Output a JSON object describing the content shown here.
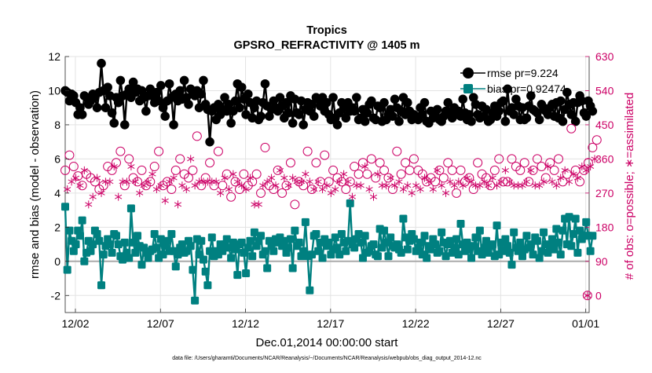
{
  "chart_data": {
    "type": "line",
    "title": "Tropics",
    "subtitle": "GPSRO_REFRACTIVITY @ 1405 m",
    "xlabel": "Dec.01,2014 00:00:00 start",
    "ylabel_left": "rmse and bias (model - observation)",
    "ylabel_right": "# of obs: o=possible; ∗=assimilated",
    "footnote": "data file: /Users/gharamti/Documents/NCAR/Reanalysis/~/Documents/NCAR/Reanalysis/webpub/obs_diag_output_2014-12.nc",
    "x_range_days": [
      0.4,
      31.2
    ],
    "ylim_left": [
      -3,
      12
    ],
    "ylim_right": [
      -45,
      630
    ],
    "x_ticks": [
      {
        "day": 1.0,
        "label": "12/02"
      },
      {
        "day": 6.0,
        "label": "12/07"
      },
      {
        "day": 11.0,
        "label": "12/12"
      },
      {
        "day": 16.0,
        "label": "12/17"
      },
      {
        "day": 21.0,
        "label": "12/22"
      },
      {
        "day": 26.0,
        "label": "12/27"
      },
      {
        "day": 31.0,
        "label": "01/01"
      }
    ],
    "y_ticks_left": [
      -2,
      0,
      2,
      4,
      6,
      8,
      10,
      12
    ],
    "y_ticks_right": [
      0,
      90,
      180,
      270,
      360,
      450,
      540,
      630
    ],
    "legend": [
      {
        "name": "rmse pr=9.224",
        "color": "#000000",
        "marker": "circle"
      },
      {
        "name": "bias pr=0.92474",
        "color": "#008080",
        "marker": "square"
      }
    ],
    "x_step_days": 0.125,
    "series": [
      {
        "name": "rmse",
        "axis": "left",
        "color": "#000000",
        "values": [
          10.0,
          9.9,
          9.4,
          9.8,
          9.7,
          9.3,
          8.6,
          9.0,
          8.6,
          9.7,
          9.6,
          9.2,
          9.4,
          9.8,
          9.6,
          9.0,
          9.9,
          11.6,
          10.0,
          9.0,
          10.2,
          9.7,
          8.7,
          8.1,
          9.6,
          9.3,
          10.6,
          9.7,
          8.0,
          9.8,
          10.1,
          9.6,
          10.5,
          9.9,
          10.1,
          9.4,
          10.0,
          9.6,
          8.8,
          9.7,
          10.1,
          9.7,
          9.3,
          9.9,
          9.4,
          10.3,
          9.0,
          8.5,
          9.4,
          10.4,
          9.6,
          8.0,
          9.8,
          9.4,
          10.0,
          9.5,
          10.6,
          9.6,
          9.2,
          10.1,
          9.8,
          9.7,
          10.0,
          9.0,
          9.8,
          10.6,
          9.2,
          8.9,
          7.0,
          8.8,
          9.0,
          8.3,
          9.2,
          8.6,
          8.9,
          9.6,
          8.8,
          9.2,
          8.1,
          8.8,
          9.4,
          10.4,
          9.0,
          10.2,
          9.5,
          8.6,
          9.8,
          9.3,
          8.4,
          9.0,
          9.4,
          8.3,
          8.5,
          9.3,
          10.4,
          9.1,
          8.5,
          8.9,
          9.4,
          9.0,
          8.8,
          9.6,
          9.1,
          8.4,
          9.3,
          8.7,
          9.7,
          8.1,
          9.5,
          8.7,
          8.6,
          9.4,
          8.0,
          8.9,
          9.3,
          8.8,
          9.2,
          8.5,
          9.6,
          9.5,
          9.1,
          9.6,
          8.8,
          9.3,
          8.6,
          8.3,
          9.6,
          8.4,
          8.0,
          8.7,
          9.3,
          9.0,
          8.4,
          9.3,
          8.8,
          9.0,
          8.8,
          9.6,
          8.3,
          8.4,
          8.9,
          8.2,
          8.7,
          9.2,
          9.4,
          8.4,
          8.3,
          9.1,
          9.0,
          8.2,
          9.3,
          8.3,
          8.6,
          8.9,
          8.5,
          9.5,
          9.0,
          8.2,
          8.8,
          9.6,
          8.6,
          9.3,
          8.8,
          8.3,
          8.6,
          8.5,
          8.3,
          9.0,
          8.6,
          9.3,
          8.2,
          8.1,
          8.8,
          8.4,
          8.6,
          8.9,
          8.3,
          8.2,
          8.5,
          8.8,
          9.3,
          8.7,
          8.4,
          9.0,
          8.6,
          8.8,
          8.5,
          9.5,
          8.7,
          8.3,
          8.6,
          8.2,
          9.6,
          9.2,
          8.6,
          8.4,
          9.1,
          8.5,
          8.9,
          8.2,
          8.3,
          8.7,
          9.1,
          8.5,
          8.8,
          9.3,
          9.4,
          8.2,
          10.1,
          8.8,
          9.0,
          8.6,
          9.5,
          9.1,
          8.3,
          9.0,
          8.3,
          8.4,
          9.1,
          9.7,
          8.9,
          8.8,
          8.7,
          8.3,
          9.2,
          9.0,
          8.8,
          8.6,
          9.0,
          9.2,
          8.5,
          9.3,
          8.4,
          9.4,
          8.2,
          8.9,
          9.9,
          9.2,
          8.6,
          9.3,
          8.2,
          9.3,
          9.7,
          9.4,
          8.7,
          8.5,
          9.4,
          9.1,
          8.8
        ]
      },
      {
        "name": "bias",
        "axis": "left",
        "color": "#008080",
        "values": [
          3.2,
          -0.5,
          1.8,
          1.2,
          0.6,
          1.0,
          1.8,
          1.5,
          2.4,
          0.0,
          0.5,
          1.2,
          0.6,
          1.0,
          1.8,
          1.6,
          1.2,
          -1.4,
          0.4,
          0.9,
          1.3,
          1.0,
          0.5,
          1.6,
          1.5,
          1.0,
          0.3,
          0.1,
          1.1,
          0.5,
          0.2,
          3.1,
          1.1,
          0.5,
          1.5,
          0.9,
          -0.2,
          0.8,
          0.5,
          0.2,
          0.6,
          0.7,
          1.6,
          0.8,
          0.2,
          1.3,
          0.4,
          0.9,
          1.2,
          0.6,
          1.6,
          0.6,
          -0.3,
          0.4,
          0.8,
          1.0,
          0.5,
          0.6,
          1.2,
          0.9,
          -0.5,
          -2.3,
          1.3,
          0.4,
          1.2,
          0.1,
          -0.6,
          -1.4,
          0.6,
          1.4,
          0.3,
          0.6,
          0.4,
          1.0,
          0.6,
          1.0,
          1.3,
          0.8,
          0.2,
          1.1,
          0.7,
          -0.8,
          1.0,
          1.1,
          0.5,
          -0.7,
          0.8,
          1.2,
          0.3,
          1.7,
          0.9,
          1.2,
          1.5,
          0.4,
          0.6,
          -0.4,
          1.2,
          0.9,
          0.6,
          1.3,
          1.1,
          1.4,
          0.9,
          1.2,
          0.5,
          0.8,
          1.3,
          -0.4,
          1.8,
          0.9,
          1.1,
          0.3,
          0.6,
          2.3,
          0.3,
          -1.7,
          0.4,
          1.5,
          1.6,
          0.6,
          1.1,
          0.2,
          1.3,
          0.9,
          1.1,
          0.4,
          0.7,
          1.4,
          0.8,
          0.4,
          1.6,
          1.1,
          0.6,
          1.2,
          3.4,
          1.0,
          0.8,
          1.3,
          1.6,
          1.1,
          0.2,
          1.5,
          0.5,
          0.6,
          0.9,
          1.0,
          0.4,
          0.3,
          1.9,
          0.8,
          1.8,
          1.1,
          0.3,
          1.4,
          0.9,
          0.8,
          1.0,
          0.7,
          0.5,
          2.5,
          1.4,
          0.7,
          1.2,
          1.6,
          1.3,
          0.6,
          0.8,
          1.1,
          0.4,
          1.5,
          0.2,
          0.9,
          0.7,
          1.3,
          1.0,
          0.5,
          0.6,
          1.7,
          1.1,
          0.3,
          1.0,
          1.2,
          0.5,
          0.8,
          1.3,
          0.4,
          2.2,
          1.0,
          0.6,
          1.1,
          0.7,
          0.2,
          0.9,
          1.4,
          0.6,
          1.8,
          0.4,
          0.8,
          1.2,
          0.5,
          0.9,
          1.0,
          0.3,
          2.1,
          0.4,
          1.1,
          0.6,
          1.3,
          0.9,
          0.5,
          -0.2,
          1.7,
          0.8,
          0.6,
          1.1,
          0.3,
          0.7,
          1.5,
          0.8,
          1.0,
          0.4,
          1.4,
          1.2,
          0.2,
          0.6,
          1.7,
          1.0,
          0.5,
          0.9,
          1.3,
          0.7,
          1.9,
          1.1,
          0.4,
          1.8,
          2.5,
          1.0,
          2.6,
          0.9,
          1.6,
          2.5,
          0.5,
          1.8,
          1.3,
          1.5,
          2.3,
          1.5,
          0.6,
          1.5
        ]
      },
      {
        "name": "possible",
        "axis": "right",
        "color": "#cc0066",
        "marker": "open-circle",
        "values": [
          330,
          270,
          370,
          290,
          340,
          300,
          315,
          280,
          290,
          390,
          320,
          260,
          310,
          280,
          300,
          330,
          280,
          360,
          290,
          300,
          340,
          310,
          330,
          380,
          350,
          290,
          380,
          310,
          290,
          340,
          360,
          380,
          310,
          320,
          300,
          280,
          330,
          360,
          290,
          330,
          300,
          360,
          340,
          290,
          380,
          320,
          290,
          260,
          300,
          350,
          280,
          300,
          330,
          250,
          360,
          300,
          320,
          280,
          310,
          420,
          330,
          300,
          420,
          360,
          290,
          300,
          310,
          310,
          350,
          330,
          290,
          290,
          380,
          280,
          290,
          350,
          320,
          290,
          260,
          370,
          300,
          330,
          280,
          300,
          320,
          310,
          290,
          360,
          300,
          260,
          320,
          250,
          270,
          300,
          390,
          330,
          290,
          360,
          280,
          300,
          330,
          360,
          270,
          340,
          290,
          300,
          350,
          330,
          240,
          320,
          300,
          310,
          290,
          350,
          380,
          340,
          280,
          300,
          350,
          320,
          300,
          290,
          370,
          310,
          300,
          280,
          330,
          290,
          310,
          340,
          300,
          360,
          280,
          320,
          300,
          270,
          340,
          300,
          320,
          310,
          350,
          380,
          320,
          300,
          360,
          270,
          310,
          360,
          350,
          300,
          330,
          300,
          310,
          340,
          280,
          300,
          380,
          330,
          320,
          290,
          350,
          300,
          330,
          280,
          360,
          310,
          330,
          290,
          320,
          350,
          300,
          330,
          310,
          290,
          300,
          380,
          330,
          300,
          310,
          280,
          350,
          340,
          330,
          300,
          270,
          320,
          330,
          300,
          300,
          360,
          310,
          330,
          280,
          300,
          350,
          310,
          320,
          330,
          310,
          300,
          290,
          350,
          330,
          310,
          360,
          330,
          300,
          390,
          300,
          330,
          360,
          310,
          340,
          300,
          330,
          310,
          350,
          320,
          300,
          390,
          330,
          310,
          360,
          300,
          340,
          330,
          310,
          400,
          350,
          320,
          330,
          310,
          360,
          350,
          300,
          380,
          320,
          340,
          440,
          370,
          330,
          350,
          300,
          400,
          330,
          410,
          350,
          420,
          390,
          460,
          410
        ]
      },
      {
        "name": "assimilated",
        "axis": "right",
        "color": "#cc0066",
        "marker": "asterisk",
        "values": [
          290,
          280,
          320,
          300,
          270,
          310,
          320,
          290,
          300,
          330,
          280,
          240,
          300,
          260,
          280,
          310,
          230,
          270,
          250,
          300,
          320,
          300,
          280,
          340,
          310,
          260,
          350,
          300,
          230,
          300,
          280,
          340,
          290,
          300,
          280,
          270,
          300,
          290,
          280,
          300,
          310,
          320,
          300,
          280,
          310,
          290,
          300,
          250,
          280,
          300,
          270,
          310,
          300,
          240,
          330,
          290,
          300,
          280,
          300,
          360,
          320,
          290,
          350,
          300,
          280,
          300,
          290,
          300,
          320,
          300,
          280,
          300,
          330,
          270,
          280,
          310,
          300,
          280,
          250,
          320,
          280,
          300,
          270,
          290,
          300,
          280,
          310,
          310,
          280,
          240,
          300,
          240,
          260,
          290,
          330,
          300,
          280,
          310,
          270,
          290,
          300,
          330,
          260,
          310,
          280,
          290,
          320,
          310,
          230,
          300,
          290,
          300,
          280,
          320,
          330,
          300,
          270,
          280,
          310,
          300,
          290,
          280,
          330,
          290,
          280,
          270,
          300,
          280,
          290,
          300,
          290,
          320,
          270,
          300,
          290,
          260,
          310,
          290,
          300,
          290,
          320,
          340,
          300,
          280,
          310,
          260,
          290,
          320,
          310,
          290,
          300,
          290,
          300,
          310,
          270,
          290,
          320,
          300,
          290,
          280,
          310,
          290,
          300,
          270,
          320,
          290,
          300,
          280,
          300,
          310,
          290,
          300,
          290,
          280,
          290,
          330,
          300,
          290,
          300,
          270,
          310,
          300,
          300,
          290,
          260,
          300,
          300,
          290,
          290,
          310,
          290,
          300,
          270,
          290,
          310,
          290,
          300,
          300,
          290,
          290,
          280,
          310,
          300,
          290,
          320,
          300,
          290,
          330,
          290,
          300,
          320,
          290,
          300,
          290,
          300,
          290,
          310,
          300,
          290,
          330,
          300,
          290,
          320,
          290,
          300,
          300,
          290,
          340,
          310,
          300,
          300,
          290,
          310,
          310,
          290,
          330,
          300,
          300,
          330,
          320,
          290,
          310,
          290,
          340,
          300,
          330,
          310,
          340,
          320,
          360,
          330
        ]
      }
    ]
  }
}
